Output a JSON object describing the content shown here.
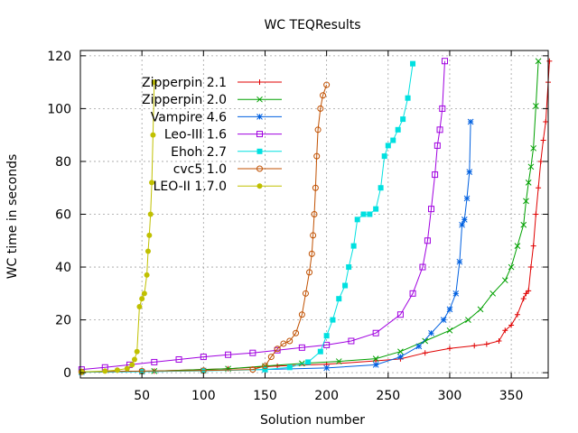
{
  "chart_data": {
    "type": "line",
    "title": "WC TEQResults",
    "xlabel": "Solution number",
    "ylabel": "WC time in seconds",
    "xlim": [
      0,
      380
    ],
    "ylim": [
      -2,
      122
    ],
    "xticks": [
      50,
      100,
      150,
      200,
      250,
      300,
      350
    ],
    "yticks": [
      0,
      20,
      40,
      60,
      80,
      100,
      120
    ],
    "grid": true,
    "legend_position": "top-left",
    "series": [
      {
        "name": "Zipperpin 2.1",
        "color": "#e00000",
        "marker": "plus",
        "points": [
          [
            1,
            0.3
          ],
          [
            60,
            0.6
          ],
          [
            120,
            1.5
          ],
          [
            160,
            2.5
          ],
          [
            200,
            3.2
          ],
          [
            240,
            4.5
          ],
          [
            260,
            5.2
          ],
          [
            280,
            7.5
          ],
          [
            300,
            9.2
          ],
          [
            320,
            10.2
          ],
          [
            330,
            10.8
          ],
          [
            340,
            12
          ],
          [
            345,
            16
          ],
          [
            350,
            18
          ],
          [
            355,
            22
          ],
          [
            360,
            28
          ],
          [
            362,
            30
          ],
          [
            364,
            31
          ],
          [
            366,
            40
          ],
          [
            368,
            48
          ],
          [
            370,
            60
          ],
          [
            372,
            70
          ],
          [
            374,
            80
          ],
          [
            376,
            88
          ],
          [
            378,
            95
          ],
          [
            380,
            110
          ],
          [
            381,
            118
          ]
        ]
      },
      {
        "name": "Zipperpin 2.0",
        "color": "#00a000",
        "marker": "cross",
        "points": [
          [
            1,
            0.3
          ],
          [
            60,
            0.6
          ],
          [
            120,
            1.5
          ],
          [
            150,
            2.5
          ],
          [
            180,
            3.5
          ],
          [
            210,
            4.3
          ],
          [
            240,
            5.3
          ],
          [
            260,
            8
          ],
          [
            280,
            12
          ],
          [
            300,
            16
          ],
          [
            315,
            20
          ],
          [
            325,
            24
          ],
          [
            335,
            30
          ],
          [
            345,
            35
          ],
          [
            350,
            40
          ],
          [
            355,
            48
          ],
          [
            360,
            56
          ],
          [
            362,
            65
          ],
          [
            364,
            72
          ],
          [
            366,
            78
          ],
          [
            368,
            85
          ],
          [
            370,
            101
          ],
          [
            372,
            118
          ]
        ]
      },
      {
        "name": "Vampire 4.6",
        "color": "#0060e0",
        "marker": "asterisk",
        "points": [
          [
            1,
            0.2
          ],
          [
            50,
            0.4
          ],
          [
            100,
            0.8
          ],
          [
            150,
            1.2
          ],
          [
            200,
            1.8
          ],
          [
            240,
            3
          ],
          [
            260,
            6
          ],
          [
            275,
            10
          ],
          [
            285,
            15
          ],
          [
            295,
            20
          ],
          [
            300,
            24
          ],
          [
            305,
            30
          ],
          [
            308,
            42
          ],
          [
            310,
            56
          ],
          [
            312,
            58
          ],
          [
            314,
            66
          ],
          [
            316,
            76
          ],
          [
            317,
            95
          ]
        ]
      },
      {
        "name": "Leo-III 1.6",
        "color": "#a000e0",
        "marker": "box",
        "points": [
          [
            1,
            1.2
          ],
          [
            20,
            2
          ],
          [
            40,
            3
          ],
          [
            60,
            4
          ],
          [
            80,
            5
          ],
          [
            100,
            6
          ],
          [
            120,
            6.8
          ],
          [
            140,
            7.5
          ],
          [
            160,
            8.5
          ],
          [
            180,
            9.5
          ],
          [
            200,
            10.5
          ],
          [
            220,
            12
          ],
          [
            240,
            15
          ],
          [
            260,
            22
          ],
          [
            270,
            30
          ],
          [
            278,
            40
          ],
          [
            282,
            50
          ],
          [
            285,
            62
          ],
          [
            288,
            75
          ],
          [
            290,
            86
          ],
          [
            292,
            92
          ],
          [
            294,
            100
          ],
          [
            296,
            118
          ]
        ]
      },
      {
        "name": "Ehoh 2.7",
        "color": "#00e0e0",
        "marker": "filled-box",
        "points": [
          [
            1,
            0.2
          ],
          [
            50,
            0.4
          ],
          [
            100,
            0.7
          ],
          [
            150,
            1.2
          ],
          [
            170,
            2
          ],
          [
            185,
            4
          ],
          [
            195,
            8
          ],
          [
            200,
            14
          ],
          [
            205,
            20
          ],
          [
            210,
            28
          ],
          [
            215,
            33
          ],
          [
            218,
            40
          ],
          [
            222,
            48
          ],
          [
            225,
            58
          ],
          [
            230,
            60
          ],
          [
            235,
            60
          ],
          [
            240,
            62
          ],
          [
            244,
            70
          ],
          [
            247,
            82
          ],
          [
            250,
            86
          ],
          [
            254,
            88
          ],
          [
            258,
            92
          ],
          [
            262,
            96
          ],
          [
            266,
            104
          ],
          [
            270,
            117
          ]
        ]
      },
      {
        "name": "cvc5 1.0",
        "color": "#c05000",
        "marker": "circle",
        "points": [
          [
            1,
            0.3
          ],
          [
            50,
            0.6
          ],
          [
            100,
            0.8
          ],
          [
            140,
            1.2
          ],
          [
            150,
            2.5
          ],
          [
            155,
            6
          ],
          [
            160,
            9
          ],
          [
            165,
            11
          ],
          [
            170,
            12
          ],
          [
            175,
            15
          ],
          [
            180,
            22
          ],
          [
            183,
            30
          ],
          [
            186,
            38
          ],
          [
            188,
            45
          ],
          [
            189,
            52
          ],
          [
            190,
            60
          ],
          [
            191,
            70
          ],
          [
            192,
            82
          ],
          [
            193,
            92
          ],
          [
            195,
            100
          ],
          [
            197,
            105
          ],
          [
            200,
            109
          ]
        ]
      },
      {
        "name": "LEO-II 1.7.0",
        "color": "#c0c000",
        "marker": "filled-circle",
        "points": [
          [
            1,
            0.3
          ],
          [
            20,
            0.6
          ],
          [
            30,
            1
          ],
          [
            38,
            1.6
          ],
          [
            42,
            3
          ],
          [
            44,
            5
          ],
          [
            46,
            8
          ],
          [
            48,
            25
          ],
          [
            50,
            28
          ],
          [
            52,
            30
          ],
          [
            54,
            37
          ],
          [
            55,
            46
          ],
          [
            56,
            52
          ],
          [
            57,
            60
          ],
          [
            58,
            72
          ],
          [
            59,
            90
          ],
          [
            60,
            110
          ]
        ]
      }
    ]
  }
}
